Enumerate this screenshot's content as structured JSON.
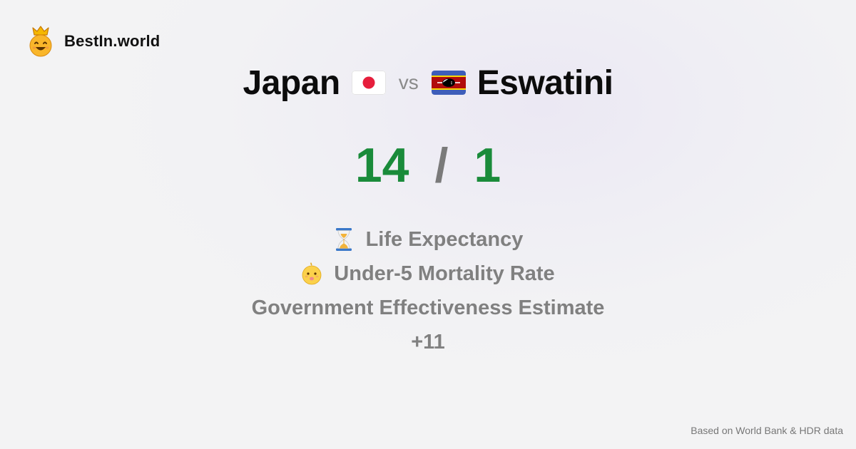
{
  "brand": {
    "name": "BestIn.world",
    "icon": "crowned-smiley-icon"
  },
  "comparison": {
    "country_a": {
      "name": "Japan",
      "flag": "japan-flag-icon"
    },
    "vs_label": "vs",
    "country_b": {
      "name": "Eswatini",
      "flag": "eswatini-flag-icon"
    }
  },
  "score": {
    "a": "14",
    "separator": "/",
    "b": "1"
  },
  "criteria": [
    {
      "label": "Life Expectancy",
      "icon": "hourglass-icon"
    },
    {
      "label": "Under-5 Mortality Rate",
      "icon": "baby-icon"
    },
    {
      "label": "Government Effectiveness Estimate"
    },
    {
      "label": "+11"
    }
  ],
  "footer": {
    "source": "Based on World Bank & HDR data"
  },
  "colors": {
    "winner_green": "#1a8b3a",
    "muted_gray": "#808080",
    "japan_red": "#e61e3c"
  }
}
